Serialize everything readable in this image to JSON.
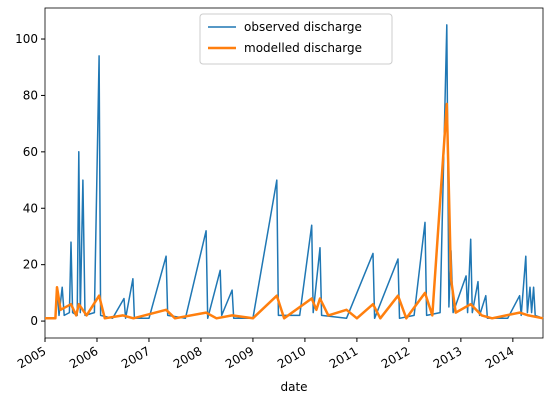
{
  "chart_data": {
    "type": "line",
    "xlabel": "date",
    "xlim": [
      2005,
      2014.58
    ],
    "xticks": [
      2005,
      2006,
      2007,
      2008,
      2009,
      2010,
      2011,
      2012,
      2013,
      2014
    ],
    "ylim": [
      -6,
      111
    ],
    "yticks": [
      0,
      20,
      40,
      60,
      80,
      100
    ],
    "legend": "upper center",
    "series": [
      {
        "name": "observed discharge",
        "color": "#1f77b4",
        "linewidth": 1.5,
        "x": [
          2005.0,
          2005.2,
          2005.23,
          2005.27,
          2005.33,
          2005.37,
          2005.47,
          2005.5,
          2005.53,
          2005.62,
          2005.65,
          2005.68,
          2005.73,
          2005.77,
          2005.95,
          2006.04,
          2006.07,
          2006.3,
          2006.52,
          2006.55,
          2006.69,
          2006.72,
          2007.0,
          2007.33,
          2007.36,
          2007.7,
          2008.1,
          2008.13,
          2008.37,
          2008.4,
          2008.6,
          2008.63,
          2009.0,
          2009.46,
          2009.49,
          2009.9,
          2010.13,
          2010.16,
          2010.29,
          2010.32,
          2010.8,
          2011.31,
          2011.34,
          2011.79,
          2011.82,
          2012.1,
          2012.31,
          2012.34,
          2012.6,
          2012.73,
          2012.77,
          2012.81,
          2012.85,
          2013.1,
          2013.13,
          2013.19,
          2013.22,
          2013.33,
          2013.36,
          2013.48,
          2013.51,
          2013.9,
          2014.13,
          2014.16,
          2014.25,
          2014.28,
          2014.33,
          2014.36,
          2014.4,
          2014.43,
          2014.58
        ],
        "values": [
          1,
          1,
          12,
          2,
          12,
          2,
          3,
          28,
          3,
          2,
          60,
          3,
          50,
          2,
          3,
          94,
          2,
          1,
          8,
          1,
          15,
          1,
          1,
          23,
          2,
          1,
          32,
          1,
          18,
          2,
          11,
          1,
          1,
          50,
          2,
          2,
          34,
          3,
          26,
          2,
          1,
          24,
          1,
          22,
          1,
          2,
          35,
          2,
          3,
          105,
          5,
          25,
          3,
          16,
          3,
          29,
          3,
          14,
          2,
          9,
          1,
          1,
          9,
          2,
          23,
          3,
          12,
          3,
          12,
          2,
          1
        ]
      },
      {
        "name": "modelled discharge",
        "color": "#ff7f0e",
        "linewidth": 2.5,
        "x": [
          2005.0,
          2005.2,
          2005.23,
          2005.3,
          2005.5,
          2005.6,
          2005.65,
          2005.8,
          2006.04,
          2006.15,
          2006.5,
          2006.7,
          2007.33,
          2007.5,
          2008.1,
          2008.3,
          2008.6,
          2009.0,
          2009.46,
          2009.6,
          2010.13,
          2010.22,
          2010.29,
          2010.45,
          2010.8,
          2011.0,
          2011.31,
          2011.45,
          2011.79,
          2011.95,
          2012.31,
          2012.45,
          2012.73,
          2012.81,
          2012.9,
          2013.19,
          2013.4,
          2013.6,
          2014.13,
          2014.3,
          2014.58
        ],
        "values": [
          1,
          1,
          12,
          4,
          6,
          2,
          6,
          2,
          9,
          1,
          2,
          1,
          4,
          1,
          3,
          1,
          2,
          1,
          9,
          1,
          8,
          4,
          8,
          2,
          4,
          1,
          6,
          1,
          9,
          1,
          10,
          2,
          77,
          15,
          3,
          6,
          2,
          1,
          3,
          2,
          1
        ]
      }
    ]
  }
}
